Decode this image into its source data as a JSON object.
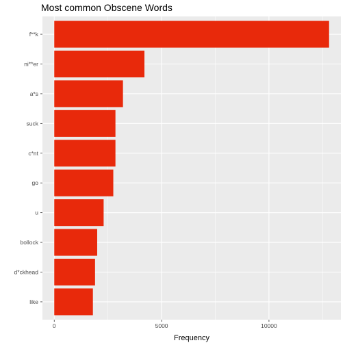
{
  "chart_data": {
    "type": "bar",
    "orientation": "horizontal",
    "title": "Most common Obscene Words",
    "xlabel": "Frequency",
    "ylabel": "",
    "categories": [
      "f**k",
      "ni**er",
      "a*s",
      "suck",
      "c*nt",
      "go",
      "u",
      "bollock",
      "d*ckhead",
      "like"
    ],
    "values": [
      12800,
      4200,
      3200,
      2850,
      2850,
      2750,
      2300,
      2000,
      1900,
      1800
    ],
    "xlim": [
      -550,
      13350
    ],
    "xticks": [
      0,
      5000,
      10000
    ],
    "xtick_labels": [
      "0",
      "5000",
      "10000"
    ],
    "grid": true,
    "bar_color": "#e8290b",
    "panel_color": "#ebebeb",
    "grid_color": "#ffffff"
  }
}
